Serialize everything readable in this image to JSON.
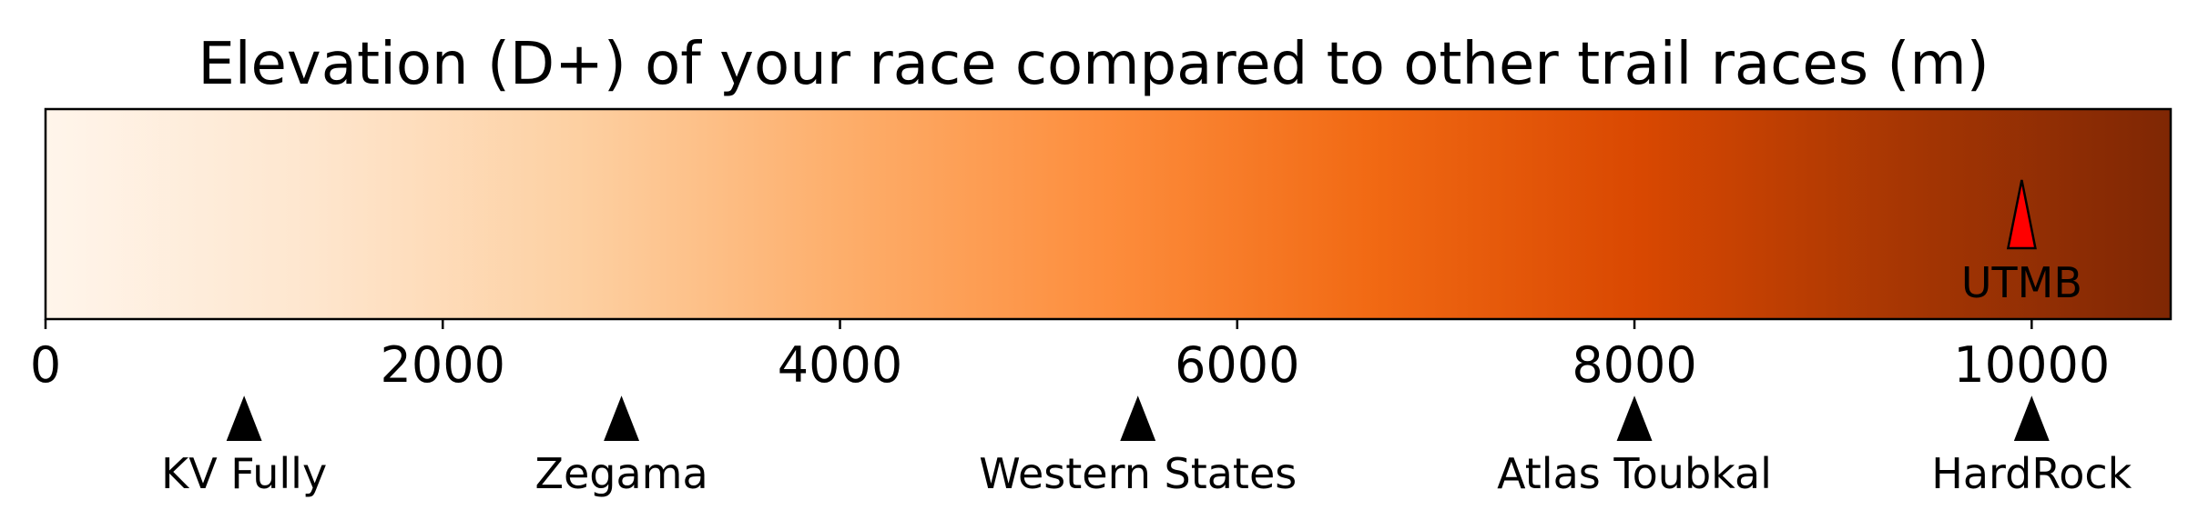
{
  "chart_data": {
    "type": "colorbar",
    "title": "Elevation (D+) of your race compared to other trail races (m)",
    "xlim": [
      0,
      10700
    ],
    "ticks": [
      0,
      2000,
      4000,
      6000,
      8000,
      10000
    ],
    "tick_labels": [
      "0",
      "2000",
      "4000",
      "6000",
      "8000",
      "10000"
    ],
    "colormap": [
      "#fff5eb",
      "#fee6ce",
      "#fdd0a2",
      "#fdae6b",
      "#fd8d3c",
      "#f16913",
      "#d94801",
      "#a63603",
      "#7f2704"
    ],
    "your_race": {
      "label": "UTMB",
      "value": 9950,
      "color": "#ff0000"
    },
    "reference_races": [
      {
        "label": "KV Fully",
        "value": 1000
      },
      {
        "label": "Zegama",
        "value": 2900
      },
      {
        "label": "Western States",
        "value": 5500
      },
      {
        "label": "Atlas Toubkal",
        "value": 8000
      },
      {
        "label": "HardRock",
        "value": 10000
      }
    ],
    "grid": false,
    "legend": "none"
  }
}
